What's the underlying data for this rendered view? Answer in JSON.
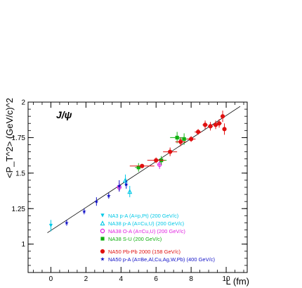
{
  "chart_data": {
    "type": "scatter",
    "title": "",
    "annotation": "J/ψ",
    "xlabel": "L (fm)",
    "ylabel": "<P_T^2> (GeV/c)^2",
    "xlim": [
      -1.3,
      11.2
    ],
    "ylim": [
      0.8,
      2.0
    ],
    "x_ticks": [
      0,
      2,
      4,
      6,
      8,
      10
    ],
    "y_ticks": [
      1,
      1.25,
      1.5,
      1.75,
      2
    ],
    "x_tick_labels": [
      "0",
      "2",
      "4",
      "6",
      "8",
      "10"
    ],
    "y_tick_labels": [
      "1",
      "1.25",
      "1.5",
      "1.75",
      "2"
    ],
    "grid": false,
    "legend_position": "bottom-right",
    "fit_line": {
      "x": [
        -0.2,
        10.8
      ],
      "y": [
        1.08,
        1.97
      ],
      "color": "#000000"
    },
    "series": [
      {
        "name": "NA3 p-A (A=p,Pt) (200 GeV/c)",
        "color": "#00c8e6",
        "marker": "triangle-down-filled",
        "points": [
          {
            "x": 0.0,
            "y": 1.13,
            "xerr": 0,
            "yerr": 0.04
          }
        ]
      },
      {
        "name": "NA38 p-A (A=Cu,U) (200 GeV/c)",
        "color": "#00c8e6",
        "marker": "triangle-up-open",
        "points": [
          {
            "x": 4.25,
            "y": 1.45,
            "xerr": 0,
            "yerr": 0.04
          },
          {
            "x": 4.5,
            "y": 1.37,
            "xerr": 0,
            "yerr": 0.04
          }
        ]
      },
      {
        "name": "NA38 O-A (A=Cu,U) (200 GeV/c)",
        "color": "#e020e0",
        "marker": "circle-open",
        "points": [
          {
            "x": 3.9,
            "y": 1.4,
            "xerr": 0.1,
            "yerr": 0.03
          },
          {
            "x": 6.2,
            "y": 1.56,
            "xerr": 0.1,
            "yerr": 0.03
          }
        ]
      },
      {
        "name": "NA38 S-U (200 GeV/c)",
        "color": "#10b010",
        "marker": "square-filled",
        "points": [
          {
            "x": 5.0,
            "y": 1.54,
            "xerr": 0.2,
            "yerr": 0.03
          },
          {
            "x": 6.3,
            "y": 1.59,
            "xerr": 0.3,
            "yerr": 0.03
          },
          {
            "x": 7.2,
            "y": 1.75,
            "xerr": 0.4,
            "yerr": 0.04
          },
          {
            "x": 7.6,
            "y": 1.74,
            "xerr": 0.3,
            "yerr": 0.04
          }
        ]
      },
      {
        "name": "NA50 Pb-Pb 2000 (158 GeV/c)",
        "color": "#e01010",
        "marker": "circle-filled",
        "points": [
          {
            "x": 5.2,
            "y": 1.55,
            "xerr": 0.7,
            "yerr": 0.01
          },
          {
            "x": 6.0,
            "y": 1.59,
            "xerr": 0.5,
            "yerr": 0.02
          },
          {
            "x": 6.8,
            "y": 1.65,
            "xerr": 0.4,
            "yerr": 0.03
          },
          {
            "x": 7.4,
            "y": 1.72,
            "xerr": 0.3,
            "yerr": 0.03
          },
          {
            "x": 8.0,
            "y": 1.74,
            "xerr": 0.25,
            "yerr": 0.02
          },
          {
            "x": 8.4,
            "y": 1.79,
            "xerr": 0.2,
            "yerr": 0.02
          },
          {
            "x": 8.8,
            "y": 1.84,
            "xerr": 0.15,
            "yerr": 0.03
          },
          {
            "x": 9.1,
            "y": 1.83,
            "xerr": 0.15,
            "yerr": 0.03
          },
          {
            "x": 9.4,
            "y": 1.84,
            "xerr": 0.15,
            "yerr": 0.03
          },
          {
            "x": 9.6,
            "y": 1.85,
            "xerr": 0.15,
            "yerr": 0.03
          },
          {
            "x": 9.8,
            "y": 1.9,
            "xerr": 0.1,
            "yerr": 0.04
          },
          {
            "x": 9.9,
            "y": 1.81,
            "xerr": 0.1,
            "yerr": 0.04
          }
        ]
      },
      {
        "name": "NA50  p-A (A=Be,Al,Cu,Ag,W,Pb) (400 GeV/c)",
        "color": "#1010c8",
        "marker": "star",
        "points": [
          {
            "x": 0.9,
            "y": 1.15,
            "xerr": 0.05,
            "yerr": 0.02
          },
          {
            "x": 1.9,
            "y": 1.23,
            "xerr": 0.05,
            "yerr": 0.02
          },
          {
            "x": 2.6,
            "y": 1.3,
            "xerr": 0.05,
            "yerr": 0.03
          },
          {
            "x": 3.3,
            "y": 1.34,
            "xerr": 0.05,
            "yerr": 0.02
          },
          {
            "x": 3.9,
            "y": 1.41,
            "xerr": 0.05,
            "yerr": 0.04
          },
          {
            "x": 4.3,
            "y": 1.42,
            "xerr": 0.05,
            "yerr": 0.03
          }
        ]
      }
    ]
  }
}
